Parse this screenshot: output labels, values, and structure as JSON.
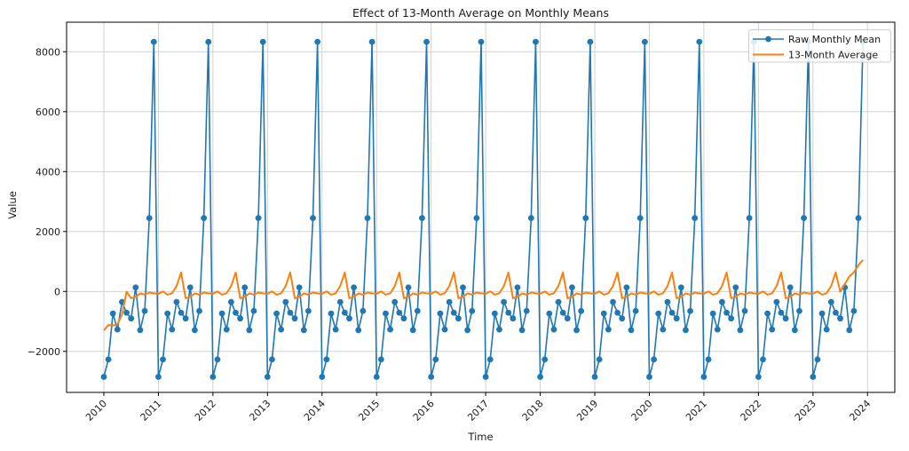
{
  "figure": {
    "title": "Effect of 13-Month Average on Monthly Means",
    "xlabel": "Time",
    "ylabel": "Value"
  },
  "legend": {
    "position": "upper right",
    "entries": [
      {
        "label": "Raw Monthly Mean",
        "color": "#1f77b4",
        "sample": "line-with-circle-marker"
      },
      {
        "label": "13-Month Average",
        "color": "#ff7f0e",
        "sample": "line"
      }
    ]
  },
  "chart_data": {
    "type": "line",
    "title": "Effect of 13-Month Average on Monthly Means",
    "xlabel": "Time",
    "ylabel": "Value",
    "grid": true,
    "xlim_decimal_years": [
      2009.317,
      2024.5
    ],
    "ylim": [
      -3369,
      8986
    ],
    "x_ticks": [
      2010,
      2011,
      2012,
      2013,
      2014,
      2015,
      2016,
      2017,
      2018,
      2019,
      2020,
      2021,
      2022,
      2023,
      2024
    ],
    "x_tick_labels": [
      "2010",
      "2011",
      "2012",
      "2013",
      "2014",
      "2015",
      "2016",
      "2017",
      "2018",
      "2019",
      "2020",
      "2021",
      "2022",
      "2023",
      "2024"
    ],
    "y_ticks": [
      -2000,
      0,
      2000,
      4000,
      6000,
      8000
    ],
    "y_tick_labels": [
      "−2000",
      "0",
      "2000",
      "4000",
      "6000",
      "8000"
    ],
    "rolling_window_months": 13,
    "series": [
      {
        "name": "Raw Monthly Mean",
        "color": "#1f77b4",
        "style": "line+markers",
        "start_year": 2010,
        "end_year": 2023,
        "month_order": [
          "Jan",
          "Feb",
          "Mar",
          "Apr",
          "May",
          "Jun",
          "Jul",
          "Aug",
          "Sep",
          "Oct",
          "Nov",
          "Dec"
        ],
        "seasonal_pattern_by_month": {
          "Jan": -2850,
          "Feb": -2270,
          "Mar": -735,
          "Apr": -1270,
          "May": -350,
          "Jun": -710,
          "Jul": -900,
          "Aug": 135,
          "Sep": -1290,
          "Oct": -650,
          "Nov": 2450,
          "Dec": 8330
        },
        "note": "Identical 12-month pattern repeats every year from 2010 through 2023; annual maximum ~8330 each December, secondary peak ~2450 each November, minimum ~-2850 each January."
      },
      {
        "name": "13-Month Average",
        "color": "#ff7f0e",
        "style": "line",
        "derivation": "Centered 13-month rolling mean of the raw series (min_periods=1): starts near -1300 in early 2010, stays near 0 with a ~+630 peak each June and a small ~+180 bump each May, and climbs to ~+1050 at the series end (Dec 2023)."
      }
    ]
  }
}
